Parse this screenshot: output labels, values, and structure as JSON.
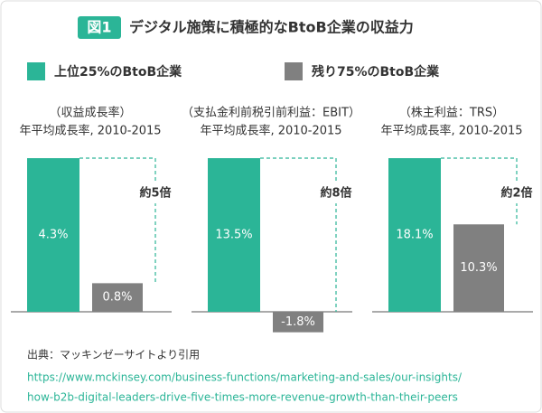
{
  "figure_label": "図1",
  "title": "デジタル施策に積極的なBtoB企業の収益力",
  "legend": [
    {
      "name": "上位25%のBtoB企業",
      "color": "#2bb597"
    },
    {
      "name": "残り75%のBtoB企業",
      "color": "#808080"
    }
  ],
  "chart_data": [
    {
      "type": "bar",
      "title": "（収益成長率）",
      "subtitle": "年平均成長率, 2010-2015",
      "values": [
        4.3,
        0.8
      ],
      "value_labels": [
        "4.3%",
        "0.8%"
      ],
      "annotation": "約5倍"
    },
    {
      "type": "bar",
      "title": "（支払金利前税引前利益：EBIT）",
      "subtitle": "年平均成長率, 2010-2015",
      "values": [
        13.5,
        -1.8
      ],
      "value_labels": [
        "13.5%",
        "-1.8%"
      ],
      "annotation": "約8倍"
    },
    {
      "type": "bar",
      "title": "（株主利益：TRS）",
      "subtitle": "年平均成長率, 2010-2015",
      "values": [
        18.1,
        10.3
      ],
      "value_labels": [
        "18.1%",
        "10.3%"
      ],
      "annotation": "約2倍"
    }
  ],
  "source": {
    "label": "出典：マッキンゼーサイトより引用",
    "url": [
      "https://www.mckinsey.com/business-functions/marketing-and-sales/our-insights/",
      "how-b2b-digital-leaders-drive-five-times-more-revenue-growth-than-their-peers"
    ]
  }
}
